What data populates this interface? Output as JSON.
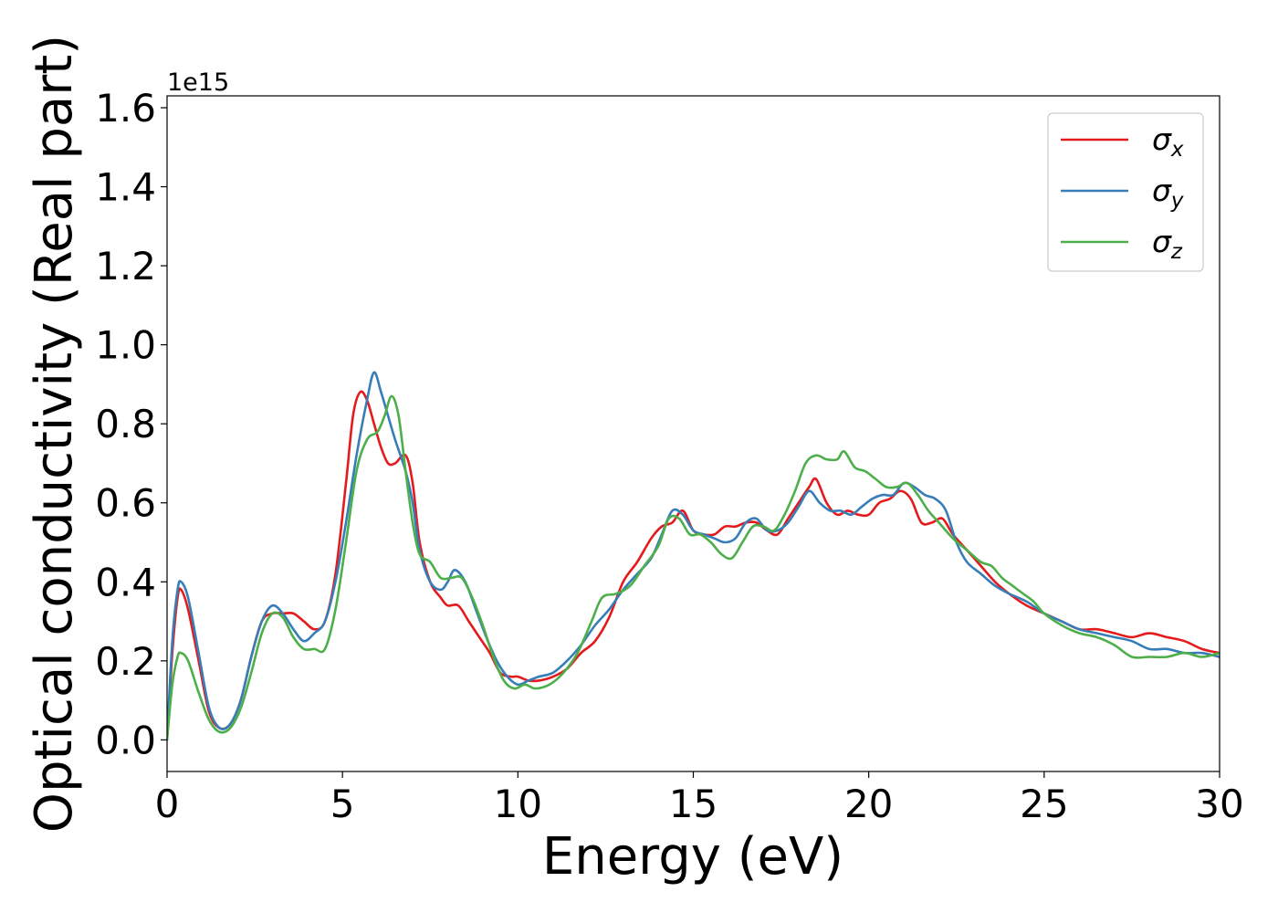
{
  "chart_data": {
    "type": "line",
    "xlabel": "Energy (eV)",
    "ylabel": "Optical conductivity (Real part)",
    "y_offset_label": "1e15",
    "xlim": [
      0,
      30
    ],
    "ylim": [
      -0.08,
      1.63
    ],
    "x_ticks": [
      0,
      5,
      10,
      15,
      20,
      25,
      30
    ],
    "y_ticks": [
      0.0,
      0.2,
      0.4,
      0.6,
      0.8,
      1.0,
      1.2,
      1.4,
      1.6
    ],
    "x_tick_labels": [
      "0",
      "5",
      "10",
      "15",
      "20",
      "25",
      "30"
    ],
    "y_tick_labels": [
      "0.0",
      "0.2",
      "0.4",
      "0.6",
      "0.8",
      "1.0",
      "1.2",
      "1.4",
      "1.6"
    ],
    "grid": false,
    "legend_position": "top-right",
    "series": [
      {
        "name": "σ",
        "subscript": "x",
        "color": "#e41a1c",
        "points": [
          [
            0,
            0.0
          ],
          [
            0.15,
            0.22
          ],
          [
            0.3,
            0.36
          ],
          [
            0.4,
            0.38
          ],
          [
            0.6,
            0.33
          ],
          [
            0.9,
            0.2
          ],
          [
            1.2,
            0.07
          ],
          [
            1.5,
            0.03
          ],
          [
            1.8,
            0.04
          ],
          [
            2.1,
            0.1
          ],
          [
            2.4,
            0.21
          ],
          [
            2.7,
            0.3
          ],
          [
            3.0,
            0.32
          ],
          [
            3.3,
            0.32
          ],
          [
            3.6,
            0.32
          ],
          [
            3.9,
            0.3
          ],
          [
            4.2,
            0.28
          ],
          [
            4.5,
            0.3
          ],
          [
            4.8,
            0.42
          ],
          [
            5.1,
            0.65
          ],
          [
            5.3,
            0.82
          ],
          [
            5.5,
            0.88
          ],
          [
            5.7,
            0.86
          ],
          [
            5.9,
            0.8
          ],
          [
            6.1,
            0.74
          ],
          [
            6.3,
            0.7
          ],
          [
            6.5,
            0.7
          ],
          [
            6.8,
            0.72
          ],
          [
            7.0,
            0.65
          ],
          [
            7.2,
            0.5
          ],
          [
            7.5,
            0.4
          ],
          [
            7.8,
            0.36
          ],
          [
            8.0,
            0.34
          ],
          [
            8.3,
            0.34
          ],
          [
            8.6,
            0.3
          ],
          [
            8.9,
            0.26
          ],
          [
            9.2,
            0.22
          ],
          [
            9.5,
            0.17
          ],
          [
            9.8,
            0.16
          ],
          [
            10.0,
            0.16
          ],
          [
            10.3,
            0.15
          ],
          [
            10.6,
            0.15
          ],
          [
            11.0,
            0.16
          ],
          [
            11.4,
            0.18
          ],
          [
            11.8,
            0.22
          ],
          [
            12.2,
            0.25
          ],
          [
            12.6,
            0.31
          ],
          [
            13.0,
            0.4
          ],
          [
            13.4,
            0.45
          ],
          [
            13.8,
            0.51
          ],
          [
            14.1,
            0.54
          ],
          [
            14.4,
            0.55
          ],
          [
            14.7,
            0.58
          ],
          [
            15.0,
            0.53
          ],
          [
            15.3,
            0.52
          ],
          [
            15.6,
            0.52
          ],
          [
            15.9,
            0.54
          ],
          [
            16.2,
            0.54
          ],
          [
            16.5,
            0.55
          ],
          [
            16.8,
            0.55
          ],
          [
            17.1,
            0.53
          ],
          [
            17.4,
            0.52
          ],
          [
            17.7,
            0.56
          ],
          [
            18.0,
            0.6
          ],
          [
            18.3,
            0.64
          ],
          [
            18.5,
            0.66
          ],
          [
            18.8,
            0.6
          ],
          [
            19.1,
            0.57
          ],
          [
            19.4,
            0.58
          ],
          [
            19.7,
            0.57
          ],
          [
            20.0,
            0.57
          ],
          [
            20.3,
            0.6
          ],
          [
            20.6,
            0.61
          ],
          [
            20.9,
            0.63
          ],
          [
            21.2,
            0.61
          ],
          [
            21.5,
            0.55
          ],
          [
            21.8,
            0.55
          ],
          [
            22.1,
            0.56
          ],
          [
            22.4,
            0.52
          ],
          [
            22.8,
            0.48
          ],
          [
            23.2,
            0.44
          ],
          [
            23.6,
            0.4
          ],
          [
            24.0,
            0.37
          ],
          [
            24.5,
            0.34
          ],
          [
            25.0,
            0.32
          ],
          [
            25.5,
            0.3
          ],
          [
            26.0,
            0.28
          ],
          [
            26.5,
            0.28
          ],
          [
            27.0,
            0.27
          ],
          [
            27.5,
            0.26
          ],
          [
            28.0,
            0.27
          ],
          [
            28.5,
            0.26
          ],
          [
            29.0,
            0.25
          ],
          [
            29.5,
            0.23
          ],
          [
            30.0,
            0.22
          ]
        ]
      },
      {
        "name": "σ",
        "subscript": "y",
        "color": "#377eb8",
        "points": [
          [
            0,
            0.0
          ],
          [
            0.15,
            0.25
          ],
          [
            0.3,
            0.38
          ],
          [
            0.4,
            0.4
          ],
          [
            0.6,
            0.36
          ],
          [
            0.9,
            0.22
          ],
          [
            1.2,
            0.08
          ],
          [
            1.5,
            0.03
          ],
          [
            1.8,
            0.04
          ],
          [
            2.1,
            0.1
          ],
          [
            2.4,
            0.21
          ],
          [
            2.7,
            0.3
          ],
          [
            3.0,
            0.34
          ],
          [
            3.3,
            0.32
          ],
          [
            3.6,
            0.28
          ],
          [
            3.9,
            0.25
          ],
          [
            4.2,
            0.27
          ],
          [
            4.5,
            0.3
          ],
          [
            4.8,
            0.4
          ],
          [
            5.1,
            0.55
          ],
          [
            5.4,
            0.72
          ],
          [
            5.7,
            0.86
          ],
          [
            5.9,
            0.93
          ],
          [
            6.1,
            0.88
          ],
          [
            6.3,
            0.82
          ],
          [
            6.5,
            0.76
          ],
          [
            6.8,
            0.68
          ],
          [
            7.0,
            0.6
          ],
          [
            7.2,
            0.48
          ],
          [
            7.5,
            0.4
          ],
          [
            7.8,
            0.38
          ],
          [
            8.0,
            0.4
          ],
          [
            8.2,
            0.43
          ],
          [
            8.5,
            0.4
          ],
          [
            8.8,
            0.33
          ],
          [
            9.1,
            0.26
          ],
          [
            9.4,
            0.2
          ],
          [
            9.7,
            0.16
          ],
          [
            10.0,
            0.14
          ],
          [
            10.3,
            0.15
          ],
          [
            10.6,
            0.16
          ],
          [
            11.0,
            0.17
          ],
          [
            11.4,
            0.2
          ],
          [
            11.8,
            0.24
          ],
          [
            12.2,
            0.29
          ],
          [
            12.6,
            0.33
          ],
          [
            13.0,
            0.38
          ],
          [
            13.4,
            0.42
          ],
          [
            13.8,
            0.46
          ],
          [
            14.1,
            0.52
          ],
          [
            14.4,
            0.58
          ],
          [
            14.7,
            0.57
          ],
          [
            15.0,
            0.53
          ],
          [
            15.3,
            0.52
          ],
          [
            15.6,
            0.51
          ],
          [
            15.9,
            0.5
          ],
          [
            16.2,
            0.51
          ],
          [
            16.5,
            0.55
          ],
          [
            16.8,
            0.56
          ],
          [
            17.1,
            0.53
          ],
          [
            17.4,
            0.53
          ],
          [
            17.7,
            0.55
          ],
          [
            18.0,
            0.59
          ],
          [
            18.3,
            0.63
          ],
          [
            18.6,
            0.6
          ],
          [
            18.9,
            0.58
          ],
          [
            19.2,
            0.58
          ],
          [
            19.5,
            0.57
          ],
          [
            19.8,
            0.59
          ],
          [
            20.1,
            0.61
          ],
          [
            20.4,
            0.62
          ],
          [
            20.7,
            0.62
          ],
          [
            21.0,
            0.65
          ],
          [
            21.3,
            0.64
          ],
          [
            21.6,
            0.62
          ],
          [
            21.9,
            0.61
          ],
          [
            22.2,
            0.58
          ],
          [
            22.5,
            0.5
          ],
          [
            22.8,
            0.45
          ],
          [
            23.2,
            0.42
          ],
          [
            23.6,
            0.39
          ],
          [
            24.0,
            0.37
          ],
          [
            24.5,
            0.35
          ],
          [
            25.0,
            0.32
          ],
          [
            25.5,
            0.3
          ],
          [
            26.0,
            0.28
          ],
          [
            26.5,
            0.27
          ],
          [
            27.0,
            0.26
          ],
          [
            27.5,
            0.25
          ],
          [
            28.0,
            0.23
          ],
          [
            28.5,
            0.23
          ],
          [
            29.0,
            0.22
          ],
          [
            29.5,
            0.22
          ],
          [
            30.0,
            0.21
          ]
        ]
      },
      {
        "name": "σ",
        "subscript": "z",
        "color": "#4daf4a",
        "points": [
          [
            0,
            0.0
          ],
          [
            0.15,
            0.14
          ],
          [
            0.3,
            0.21
          ],
          [
            0.4,
            0.22
          ],
          [
            0.6,
            0.2
          ],
          [
            0.9,
            0.12
          ],
          [
            1.2,
            0.05
          ],
          [
            1.5,
            0.02
          ],
          [
            1.8,
            0.03
          ],
          [
            2.1,
            0.08
          ],
          [
            2.4,
            0.17
          ],
          [
            2.7,
            0.27
          ],
          [
            3.0,
            0.32
          ],
          [
            3.3,
            0.31
          ],
          [
            3.6,
            0.26
          ],
          [
            3.9,
            0.23
          ],
          [
            4.2,
            0.23
          ],
          [
            4.5,
            0.23
          ],
          [
            4.8,
            0.33
          ],
          [
            5.1,
            0.5
          ],
          [
            5.4,
            0.68
          ],
          [
            5.7,
            0.76
          ],
          [
            6.0,
            0.78
          ],
          [
            6.2,
            0.82
          ],
          [
            6.4,
            0.87
          ],
          [
            6.6,
            0.82
          ],
          [
            6.8,
            0.68
          ],
          [
            7.0,
            0.55
          ],
          [
            7.2,
            0.47
          ],
          [
            7.5,
            0.45
          ],
          [
            7.8,
            0.41
          ],
          [
            8.1,
            0.41
          ],
          [
            8.4,
            0.41
          ],
          [
            8.7,
            0.36
          ],
          [
            9.0,
            0.29
          ],
          [
            9.3,
            0.21
          ],
          [
            9.6,
            0.15
          ],
          [
            9.9,
            0.13
          ],
          [
            10.2,
            0.14
          ],
          [
            10.5,
            0.13
          ],
          [
            10.9,
            0.14
          ],
          [
            11.3,
            0.17
          ],
          [
            11.7,
            0.22
          ],
          [
            12.1,
            0.3
          ],
          [
            12.4,
            0.36
          ],
          [
            12.8,
            0.37
          ],
          [
            13.2,
            0.39
          ],
          [
            13.6,
            0.44
          ],
          [
            14.0,
            0.49
          ],
          [
            14.3,
            0.56
          ],
          [
            14.6,
            0.56
          ],
          [
            14.9,
            0.52
          ],
          [
            15.2,
            0.52
          ],
          [
            15.5,
            0.5
          ],
          [
            15.8,
            0.47
          ],
          [
            16.1,
            0.46
          ],
          [
            16.4,
            0.5
          ],
          [
            16.7,
            0.54
          ],
          [
            17.0,
            0.54
          ],
          [
            17.3,
            0.53
          ],
          [
            17.6,
            0.57
          ],
          [
            17.9,
            0.63
          ],
          [
            18.2,
            0.7
          ],
          [
            18.5,
            0.72
          ],
          [
            18.8,
            0.71
          ],
          [
            19.1,
            0.71
          ],
          [
            19.3,
            0.73
          ],
          [
            19.6,
            0.69
          ],
          [
            19.9,
            0.68
          ],
          [
            20.2,
            0.66
          ],
          [
            20.5,
            0.64
          ],
          [
            20.8,
            0.64
          ],
          [
            21.1,
            0.65
          ],
          [
            21.4,
            0.62
          ],
          [
            21.7,
            0.58
          ],
          [
            22.0,
            0.55
          ],
          [
            22.4,
            0.51
          ],
          [
            22.8,
            0.48
          ],
          [
            23.2,
            0.45
          ],
          [
            23.5,
            0.44
          ],
          [
            23.8,
            0.41
          ],
          [
            24.1,
            0.39
          ],
          [
            24.4,
            0.37
          ],
          [
            24.7,
            0.35
          ],
          [
            25.0,
            0.32
          ],
          [
            25.5,
            0.29
          ],
          [
            26.0,
            0.27
          ],
          [
            26.5,
            0.26
          ],
          [
            27.0,
            0.24
          ],
          [
            27.5,
            0.21
          ],
          [
            28.0,
            0.21
          ],
          [
            28.5,
            0.21
          ],
          [
            29.0,
            0.22
          ],
          [
            29.5,
            0.21
          ],
          [
            30.0,
            0.22
          ]
        ]
      }
    ]
  }
}
